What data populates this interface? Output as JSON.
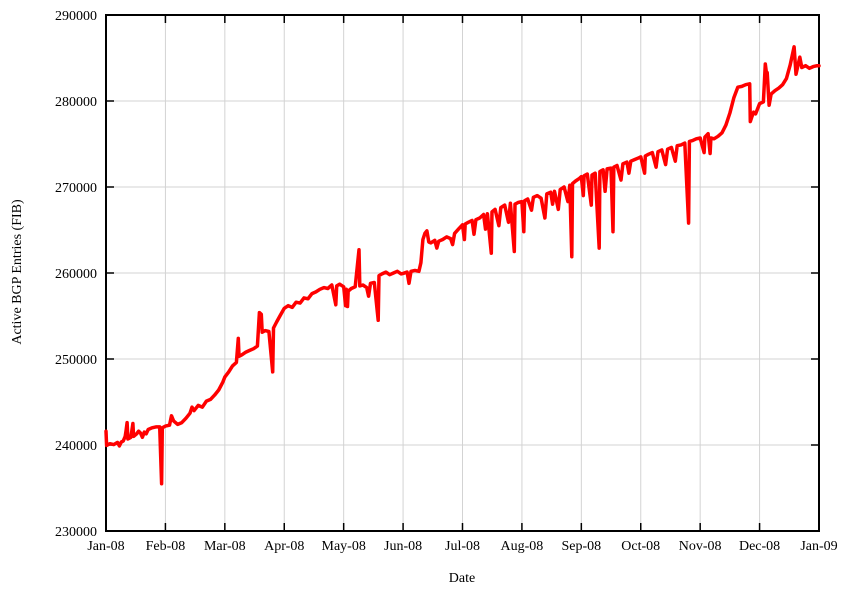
{
  "chart_data": {
    "type": "line",
    "xlabel": "Date",
    "ylabel": "Active BGP Entries (FIB)",
    "x_tick_labels": [
      "Jan-08",
      "Feb-08",
      "Mar-08",
      "Apr-08",
      "May-08",
      "Jun-08",
      "Jul-08",
      "Aug-08",
      "Sep-08",
      "Oct-08",
      "Nov-08",
      "Dec-08",
      "Jan-09"
    ],
    "y_ticks": [
      230000,
      240000,
      250000,
      260000,
      270000,
      280000,
      290000
    ],
    "y_tick_labels": [
      "230000",
      "240000",
      "250000",
      "260000",
      "270000",
      "280000",
      "290000"
    ],
    "ylim": [
      230000,
      290000
    ],
    "xlim_months": [
      0,
      12
    ],
    "x_unit": "months since Jan-08 (0 = Jan-08, 12 = Jan-09)",
    "grid": true,
    "legend": "none",
    "line_color": "#ff0000",
    "grid_color": "#d3d3d3",
    "axis_color": "#000000",
    "background_color": "#ffffff",
    "series": [
      {
        "name": "Active BGP Entries (FIB)",
        "points": [
          [
            0.0,
            241600
          ],
          [
            0.01,
            239950
          ],
          [
            0.065,
            240150
          ],
          [
            0.129,
            240050
          ],
          [
            0.194,
            240300
          ],
          [
            0.226,
            239900
          ],
          [
            0.258,
            240350
          ],
          [
            0.29,
            240450
          ],
          [
            0.323,
            241000
          ],
          [
            0.339,
            241700
          ],
          [
            0.355,
            242600
          ],
          [
            0.368,
            240700
          ],
          [
            0.419,
            240900
          ],
          [
            0.452,
            242500
          ],
          [
            0.465,
            241000
          ],
          [
            0.516,
            241300
          ],
          [
            0.548,
            241600
          ],
          [
            0.581,
            241400
          ],
          [
            0.613,
            240900
          ],
          [
            0.645,
            241500
          ],
          [
            0.677,
            241300
          ],
          [
            0.71,
            241800
          ],
          [
            0.774,
            242000
          ],
          [
            0.839,
            242100
          ],
          [
            0.903,
            242100
          ],
          [
            0.935,
            235500
          ],
          [
            0.948,
            242000
          ],
          [
            1.0,
            242200
          ],
          [
            1.069,
            242300
          ],
          [
            1.103,
            243400
          ],
          [
            1.138,
            242800
          ],
          [
            1.207,
            242400
          ],
          [
            1.276,
            242600
          ],
          [
            1.345,
            243100
          ],
          [
            1.414,
            243700
          ],
          [
            1.448,
            244400
          ],
          [
            1.483,
            244000
          ],
          [
            1.552,
            244600
          ],
          [
            1.621,
            244400
          ],
          [
            1.69,
            245100
          ],
          [
            1.759,
            245300
          ],
          [
            1.828,
            245800
          ],
          [
            1.897,
            246400
          ],
          [
            1.966,
            247300
          ],
          [
            2.0,
            247900
          ],
          [
            2.065,
            248500
          ],
          [
            2.129,
            249200
          ],
          [
            2.194,
            249600
          ],
          [
            2.226,
            252400
          ],
          [
            2.239,
            250300
          ],
          [
            2.29,
            250500
          ],
          [
            2.355,
            250800
          ],
          [
            2.419,
            251000
          ],
          [
            2.484,
            251200
          ],
          [
            2.548,
            251500
          ],
          [
            2.581,
            255400
          ],
          [
            2.613,
            255200
          ],
          [
            2.629,
            253100
          ],
          [
            2.677,
            253300
          ],
          [
            2.742,
            253200
          ],
          [
            2.806,
            248500
          ],
          [
            2.819,
            253600
          ],
          [
            2.871,
            254300
          ],
          [
            2.935,
            255100
          ],
          [
            3.0,
            255900
          ],
          [
            3.067,
            256200
          ],
          [
            3.133,
            256000
          ],
          [
            3.2,
            256600
          ],
          [
            3.267,
            256500
          ],
          [
            3.333,
            257100
          ],
          [
            3.4,
            257000
          ],
          [
            3.467,
            257600
          ],
          [
            3.533,
            257800
          ],
          [
            3.6,
            258100
          ],
          [
            3.667,
            258300
          ],
          [
            3.733,
            258200
          ],
          [
            3.8,
            258600
          ],
          [
            3.867,
            256300
          ],
          [
            3.883,
            258500
          ],
          [
            3.933,
            258700
          ],
          [
            4.0,
            258400
          ],
          [
            4.032,
            256200
          ],
          [
            4.045,
            258100
          ],
          [
            4.065,
            256100
          ],
          [
            4.077,
            257900
          ],
          [
            4.129,
            258200
          ],
          [
            4.194,
            258400
          ],
          [
            4.258,
            262700
          ],
          [
            4.271,
            258500
          ],
          [
            4.323,
            258600
          ],
          [
            4.387,
            258300
          ],
          [
            4.419,
            257300
          ],
          [
            4.452,
            258800
          ],
          [
            4.516,
            258900
          ],
          [
            4.581,
            254500
          ],
          [
            4.594,
            259700
          ],
          [
            4.645,
            259900
          ],
          [
            4.71,
            260100
          ],
          [
            4.774,
            259800
          ],
          [
            4.839,
            260000
          ],
          [
            4.903,
            260200
          ],
          [
            4.968,
            259900
          ],
          [
            5.0,
            259950
          ],
          [
            5.067,
            260100
          ],
          [
            5.1,
            258800
          ],
          [
            5.133,
            260200
          ],
          [
            5.2,
            260300
          ],
          [
            5.267,
            260200
          ],
          [
            5.3,
            261200
          ],
          [
            5.333,
            263900
          ],
          [
            5.367,
            264600
          ],
          [
            5.4,
            264900
          ],
          [
            5.433,
            263600
          ],
          [
            5.467,
            263500
          ],
          [
            5.533,
            263800
          ],
          [
            5.567,
            262900
          ],
          [
            5.6,
            263700
          ],
          [
            5.667,
            263900
          ],
          [
            5.733,
            264200
          ],
          [
            5.8,
            264000
          ],
          [
            5.833,
            263300
          ],
          [
            5.867,
            264600
          ],
          [
            5.933,
            265100
          ],
          [
            6.0,
            265600
          ],
          [
            6.032,
            263900
          ],
          [
            6.045,
            265700
          ],
          [
            6.097,
            265900
          ],
          [
            6.161,
            266100
          ],
          [
            6.194,
            264500
          ],
          [
            6.226,
            266200
          ],
          [
            6.29,
            266400
          ],
          [
            6.355,
            266800
          ],
          [
            6.387,
            265100
          ],
          [
            6.419,
            266900
          ],
          [
            6.484,
            262300
          ],
          [
            6.497,
            267100
          ],
          [
            6.548,
            267400
          ],
          [
            6.613,
            265500
          ],
          [
            6.645,
            267600
          ],
          [
            6.71,
            267900
          ],
          [
            6.774,
            265900
          ],
          [
            6.806,
            268100
          ],
          [
            6.871,
            262500
          ],
          [
            6.884,
            268000
          ],
          [
            6.935,
            268200
          ],
          [
            7.0,
            268300
          ],
          [
            7.032,
            264800
          ],
          [
            7.045,
            268400
          ],
          [
            7.097,
            268600
          ],
          [
            7.161,
            267300
          ],
          [
            7.194,
            268800
          ],
          [
            7.258,
            269000
          ],
          [
            7.323,
            268700
          ],
          [
            7.387,
            266400
          ],
          [
            7.419,
            269200
          ],
          [
            7.484,
            269400
          ],
          [
            7.516,
            268000
          ],
          [
            7.548,
            269500
          ],
          [
            7.613,
            267400
          ],
          [
            7.645,
            269700
          ],
          [
            7.71,
            270000
          ],
          [
            7.774,
            268300
          ],
          [
            7.806,
            270200
          ],
          [
            7.839,
            261900
          ],
          [
            7.852,
            270400
          ],
          [
            7.903,
            270700
          ],
          [
            7.968,
            271000
          ],
          [
            8.0,
            271200
          ],
          [
            8.033,
            269000
          ],
          [
            8.047,
            271300
          ],
          [
            8.1,
            271500
          ],
          [
            8.167,
            267900
          ],
          [
            8.18,
            271400
          ],
          [
            8.233,
            271600
          ],
          [
            8.3,
            262900
          ],
          [
            8.313,
            271800
          ],
          [
            8.367,
            272000
          ],
          [
            8.4,
            269500
          ],
          [
            8.433,
            272100
          ],
          [
            8.5,
            272200
          ],
          [
            8.533,
            264800
          ],
          [
            8.547,
            272300
          ],
          [
            8.6,
            272500
          ],
          [
            8.667,
            270800
          ],
          [
            8.7,
            272700
          ],
          [
            8.767,
            272900
          ],
          [
            8.8,
            271600
          ],
          [
            8.833,
            273000
          ],
          [
            8.9,
            273200
          ],
          [
            8.967,
            273400
          ],
          [
            9.0,
            273500
          ],
          [
            9.065,
            271600
          ],
          [
            9.077,
            273600
          ],
          [
            9.129,
            273800
          ],
          [
            9.194,
            274000
          ],
          [
            9.258,
            272300
          ],
          [
            9.29,
            274100
          ],
          [
            9.355,
            274300
          ],
          [
            9.419,
            272600
          ],
          [
            9.452,
            274400
          ],
          [
            9.516,
            274600
          ],
          [
            9.581,
            273000
          ],
          [
            9.613,
            274800
          ],
          [
            9.677,
            274900
          ],
          [
            9.742,
            275100
          ],
          [
            9.806,
            265800
          ],
          [
            9.819,
            275300
          ],
          [
            9.871,
            275400
          ],
          [
            9.935,
            275600
          ],
          [
            10.0,
            275700
          ],
          [
            10.067,
            274000
          ],
          [
            10.08,
            275800
          ],
          [
            10.133,
            276200
          ],
          [
            10.167,
            273900
          ],
          [
            10.18,
            275700
          ],
          [
            10.233,
            275600
          ],
          [
            10.3,
            275900
          ],
          [
            10.367,
            276300
          ],
          [
            10.433,
            277200
          ],
          [
            10.5,
            278600
          ],
          [
            10.567,
            280400
          ],
          [
            10.633,
            281600
          ],
          [
            10.7,
            281700
          ],
          [
            10.767,
            281900
          ],
          [
            10.833,
            282000
          ],
          [
            10.843,
            277600
          ],
          [
            10.867,
            278100
          ],
          [
            10.9,
            278700
          ],
          [
            10.933,
            278500
          ],
          [
            10.967,
            279100
          ],
          [
            11.0,
            279700
          ],
          [
            11.065,
            279900
          ],
          [
            11.097,
            284300
          ],
          [
            11.113,
            283400
          ],
          [
            11.129,
            283300
          ],
          [
            11.161,
            279500
          ],
          [
            11.194,
            280800
          ],
          [
            11.258,
            281200
          ],
          [
            11.323,
            281500
          ],
          [
            11.387,
            281900
          ],
          [
            11.452,
            282600
          ],
          [
            11.516,
            284200
          ],
          [
            11.581,
            286300
          ],
          [
            11.613,
            283100
          ],
          [
            11.677,
            285100
          ],
          [
            11.71,
            283900
          ],
          [
            11.774,
            284100
          ],
          [
            11.839,
            283800
          ],
          [
            11.903,
            284000
          ],
          [
            11.968,
            284100
          ],
          [
            12.0,
            284100
          ]
        ]
      }
    ]
  }
}
